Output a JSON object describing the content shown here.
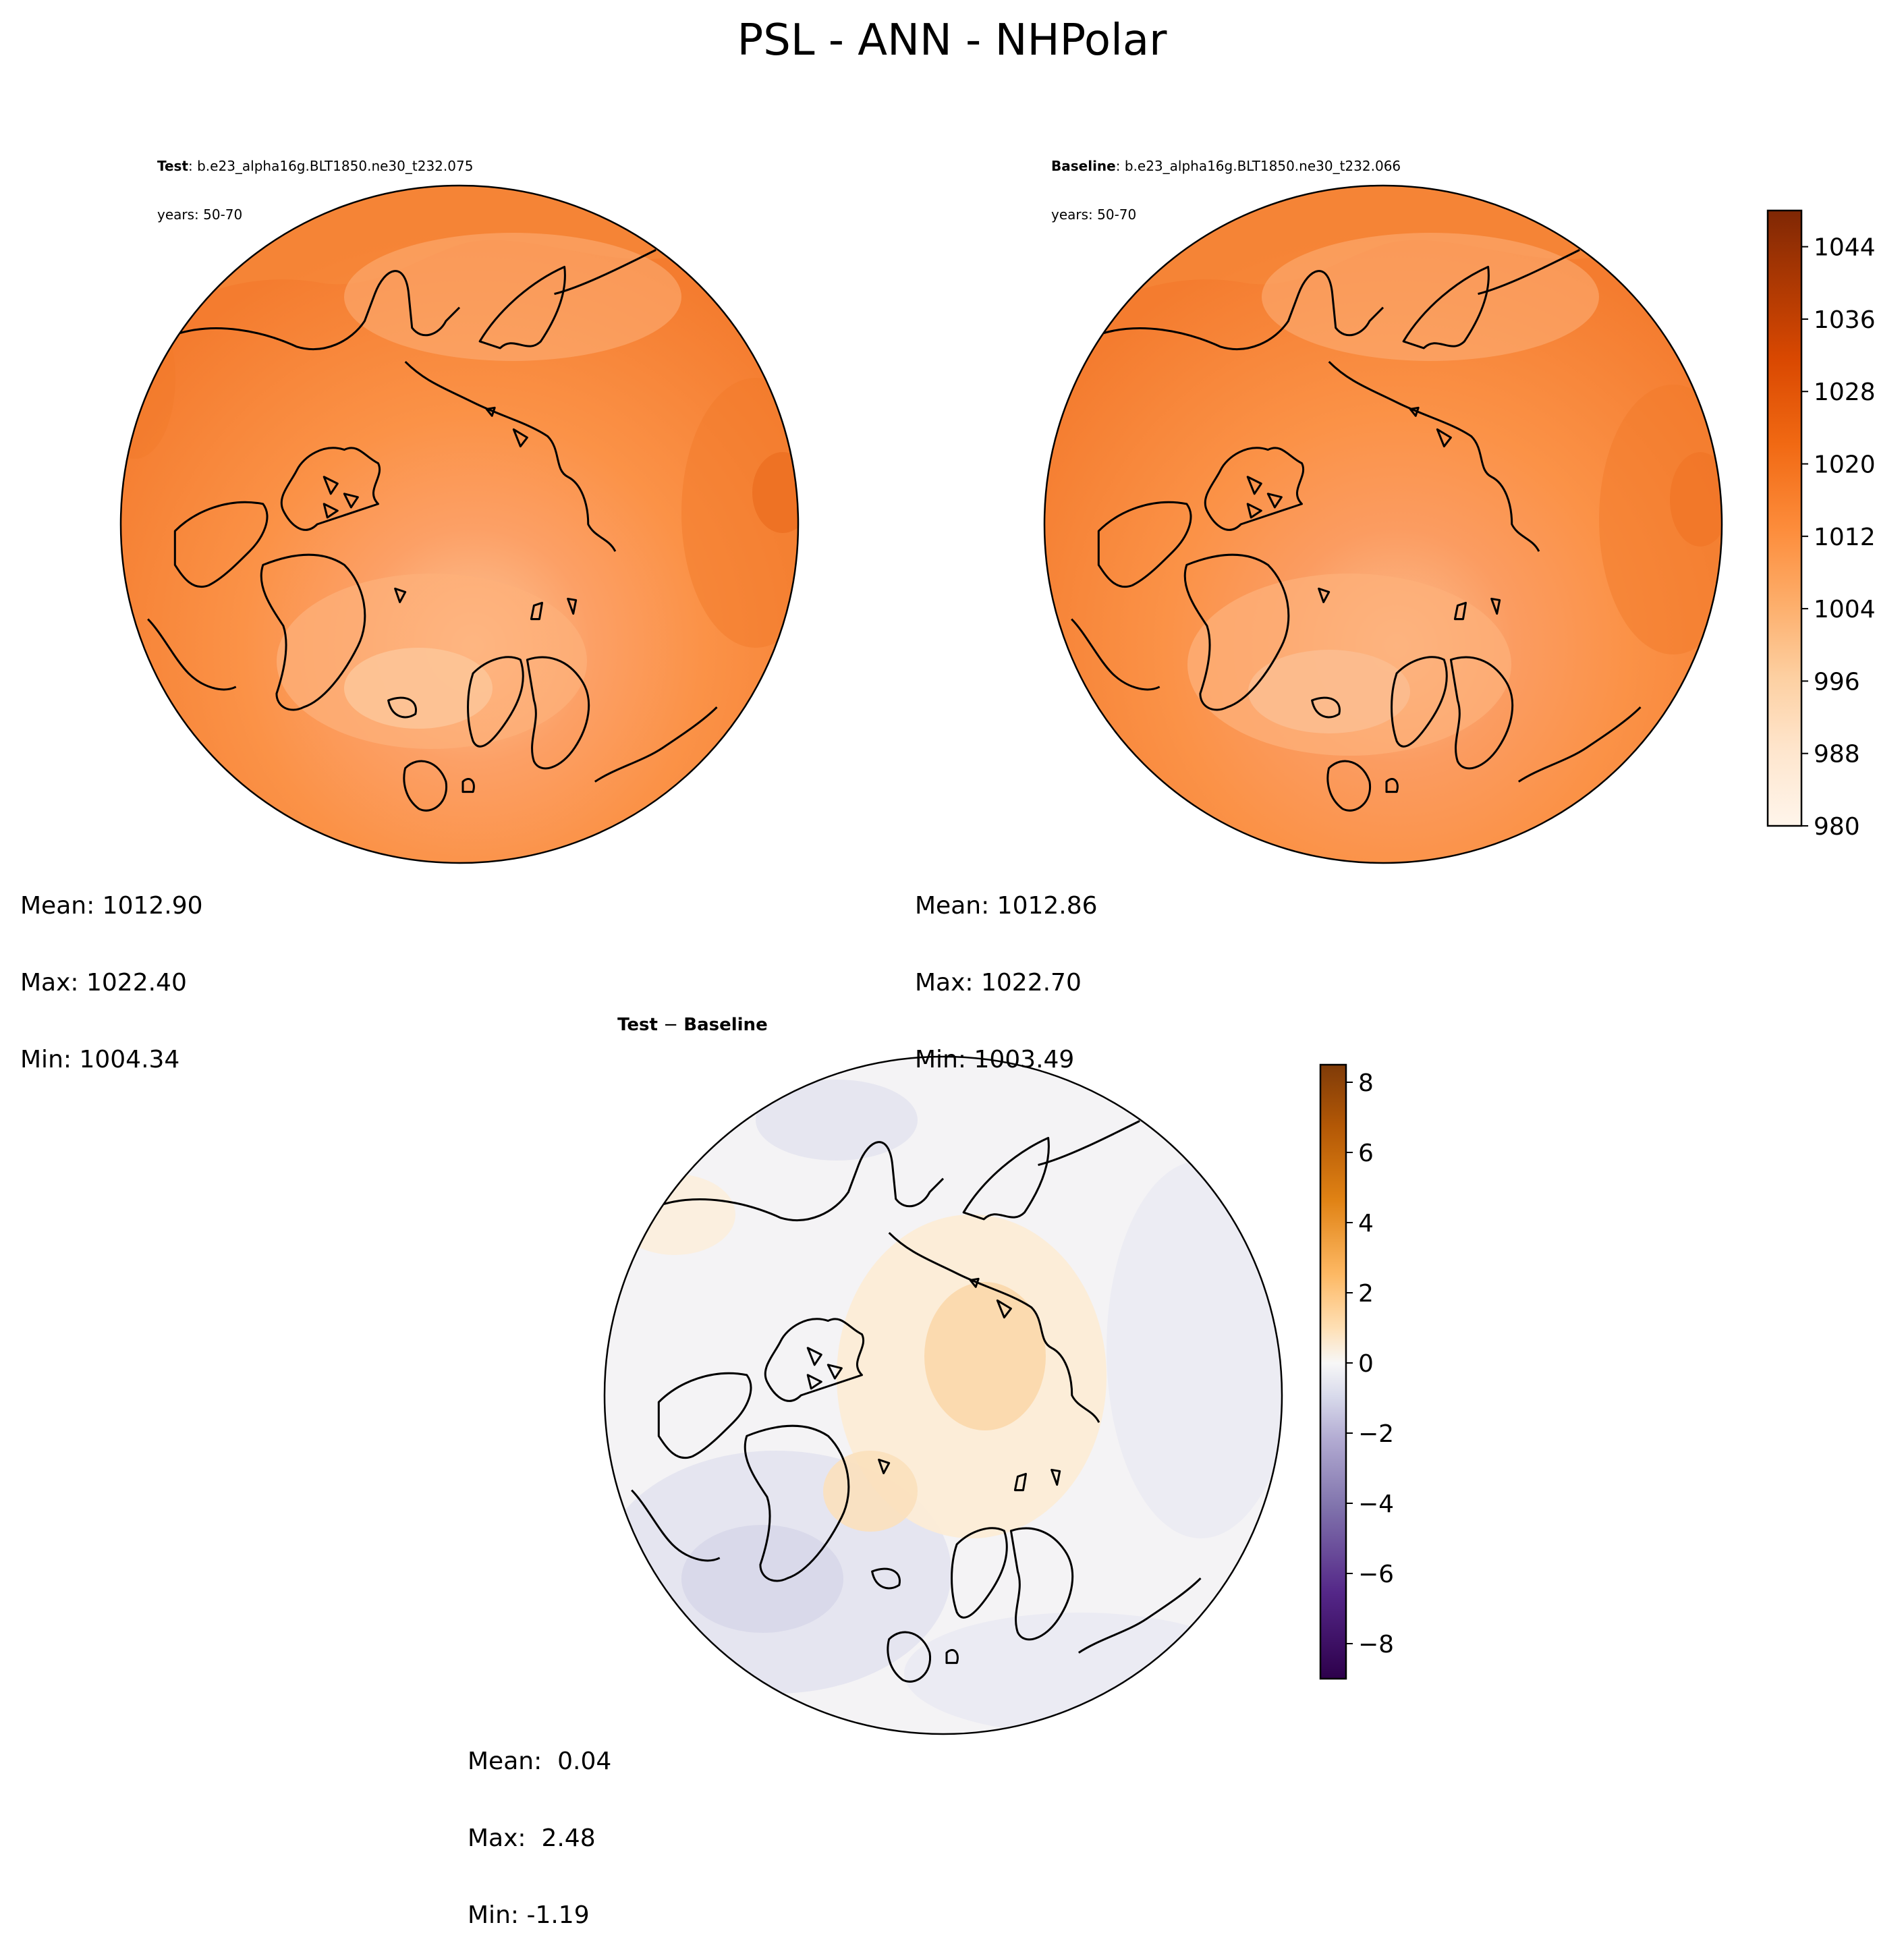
{
  "figure": {
    "title": "PSL - ANN - NHPolar"
  },
  "panels": {
    "test": {
      "label": "Test",
      "case": ": b.e23_alpha16g.BLT1850.ne30_t232.075",
      "years": "years: 50-70",
      "stats": {
        "mean": "Mean: 1012.90",
        "max": "Max: 1022.40",
        "min": "Min: 1004.34"
      }
    },
    "baseline": {
      "label": "Baseline",
      "case": ": b.e23_alpha16g.BLT1850.ne30_t232.066",
      "years": "years: 50-70",
      "stats": {
        "mean": "Mean: 1012.86",
        "max": "Max: 1022.70",
        "min": "Min: 1003.49"
      }
    },
    "diff": {
      "label_a": "Test",
      "label_op": " − ",
      "label_b": "Baseline",
      "stats": {
        "mean": "Mean:  0.04",
        "max": "Max:  2.48",
        "min": "Min: -1.19"
      }
    }
  },
  "colorbars": {
    "psl": {
      "ticks": [
        980,
        988,
        996,
        1004,
        1012,
        1020,
        1028,
        1036,
        1044
      ],
      "range": [
        980,
        1048
      ],
      "colormap": "Oranges",
      "colors": [
        "#fff5eb",
        "#fee6ce",
        "#fdd0a2",
        "#fdae6b",
        "#fd8d3c",
        "#f16913",
        "#d94801",
        "#a63603",
        "#7f2704"
      ]
    },
    "diff": {
      "ticks": [
        -8,
        -6,
        -4,
        -2,
        0,
        2,
        4,
        6,
        8
      ],
      "tick_labels": [
        "−8",
        "−6",
        "−4",
        "−2",
        "0",
        "2",
        "4",
        "6",
        "8"
      ],
      "range": [
        -9,
        8.5
      ],
      "colormap": "PuOr_r",
      "colors": [
        "#2d004b",
        "#542788",
        "#8073ac",
        "#b2abd2",
        "#d8daeb",
        "#f7f7f7",
        "#fee0b6",
        "#fdb863",
        "#e08214",
        "#b35806",
        "#7f3b08"
      ]
    }
  },
  "chart_data": {
    "type": "heatmap",
    "projection": "north-polar-stereographic",
    "variable": "PSL",
    "season": "ANN",
    "region": "NHPolar",
    "panels": [
      {
        "name": "Test",
        "mean": 1012.9,
        "max": 1022.4,
        "min": 1004.34,
        "colorbar_range": [
          980,
          1048
        ]
      },
      {
        "name": "Baseline",
        "mean": 1012.86,
        "max": 1022.7,
        "min": 1003.49,
        "colorbar_range": [
          980,
          1048
        ]
      },
      {
        "name": "Test − Baseline",
        "mean": 0.04,
        "max": 2.48,
        "min": -1.19,
        "colorbar_range": [
          -9,
          8.5
        ]
      }
    ]
  }
}
